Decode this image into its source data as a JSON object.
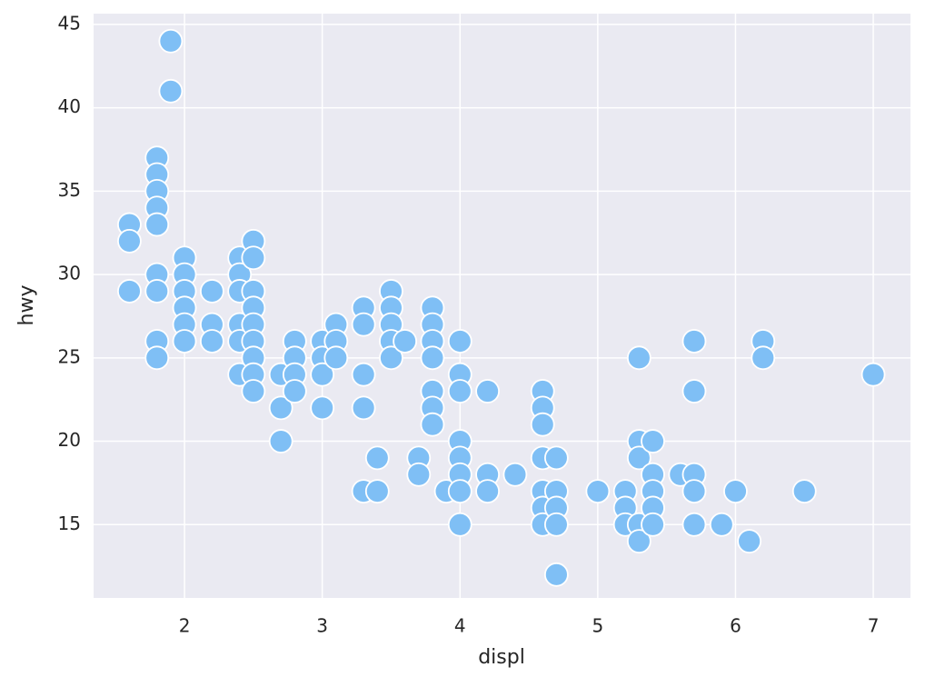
{
  "chart_data": {
    "type": "scatter",
    "xlabel": "displ",
    "ylabel": "hwy",
    "x": [
      1.6,
      1.6,
      1.6,
      1.8,
      1.8,
      1.8,
      1.8,
      1.8,
      1.8,
      1.8,
      1.8,
      1.8,
      1.9,
      1.9,
      2.0,
      2.0,
      2.0,
      2.0,
      2.0,
      2.0,
      2.2,
      2.2,
      2.2,
      2.4,
      2.4,
      2.4,
      2.4,
      2.4,
      2.4,
      2.5,
      2.5,
      2.5,
      2.5,
      2.5,
      2.5,
      2.5,
      2.5,
      2.5,
      2.7,
      2.7,
      2.7,
      2.8,
      2.8,
      2.8,
      2.8,
      3.0,
      3.0,
      3.0,
      3.0,
      3.1,
      3.1,
      3.1,
      3.3,
      3.3,
      3.3,
      3.3,
      3.3,
      3.4,
      3.4,
      3.5,
      3.5,
      3.5,
      3.5,
      3.5,
      3.6,
      3.7,
      3.7,
      3.8,
      3.8,
      3.8,
      3.8,
      3.8,
      3.8,
      3.8,
      3.9,
      4.0,
      4.0,
      4.0,
      4.0,
      4.0,
      4.0,
      4.0,
      4.0,
      4.2,
      4.2,
      4.2,
      4.4,
      4.6,
      4.6,
      4.6,
      4.6,
      4.6,
      4.6,
      4.6,
      4.7,
      4.7,
      4.7,
      4.7,
      4.7,
      5.0,
      5.2,
      5.2,
      5.2,
      5.3,
      5.3,
      5.3,
      5.3,
      5.3,
      5.4,
      5.4,
      5.4,
      5.4,
      5.4,
      5.6,
      5.7,
      5.7,
      5.7,
      5.7,
      5.7,
      5.9,
      6.0,
      6.1,
      6.2,
      6.2,
      6.5,
      7.0
    ],
    "values": [
      33,
      32,
      29,
      37,
      36,
      35,
      34,
      33,
      30,
      29,
      26,
      25,
      44,
      41,
      31,
      30,
      29,
      28,
      27,
      26,
      29,
      27,
      26,
      31,
      30,
      29,
      27,
      26,
      24,
      32,
      31,
      29,
      28,
      27,
      26,
      25,
      24,
      23,
      24,
      22,
      20,
      26,
      25,
      24,
      23,
      26,
      25,
      24,
      22,
      27,
      26,
      25,
      28,
      27,
      24,
      22,
      17,
      19,
      17,
      29,
      28,
      27,
      26,
      25,
      26,
      19,
      18,
      28,
      27,
      26,
      25,
      23,
      22,
      21,
      17,
      26,
      24,
      23,
      20,
      19,
      18,
      17,
      15,
      23,
      18,
      17,
      18,
      23,
      22,
      21,
      19,
      17,
      16,
      15,
      19,
      17,
      16,
      15,
      12,
      17,
      17,
      16,
      15,
      25,
      20,
      19,
      15,
      14,
      20,
      18,
      17,
      16,
      15,
      18,
      26,
      23,
      18,
      17,
      15,
      15,
      17,
      14,
      26,
      25,
      17,
      24
    ],
    "color": "#7fbff5",
    "xlim": [
      1.34,
      7.27
    ],
    "ylim": [
      10.6,
      45.65
    ],
    "xticks": [
      2,
      3,
      4,
      5,
      6,
      7
    ],
    "yticks": [
      15,
      20,
      25,
      30,
      35,
      40,
      45
    ],
    "grid": true
  }
}
